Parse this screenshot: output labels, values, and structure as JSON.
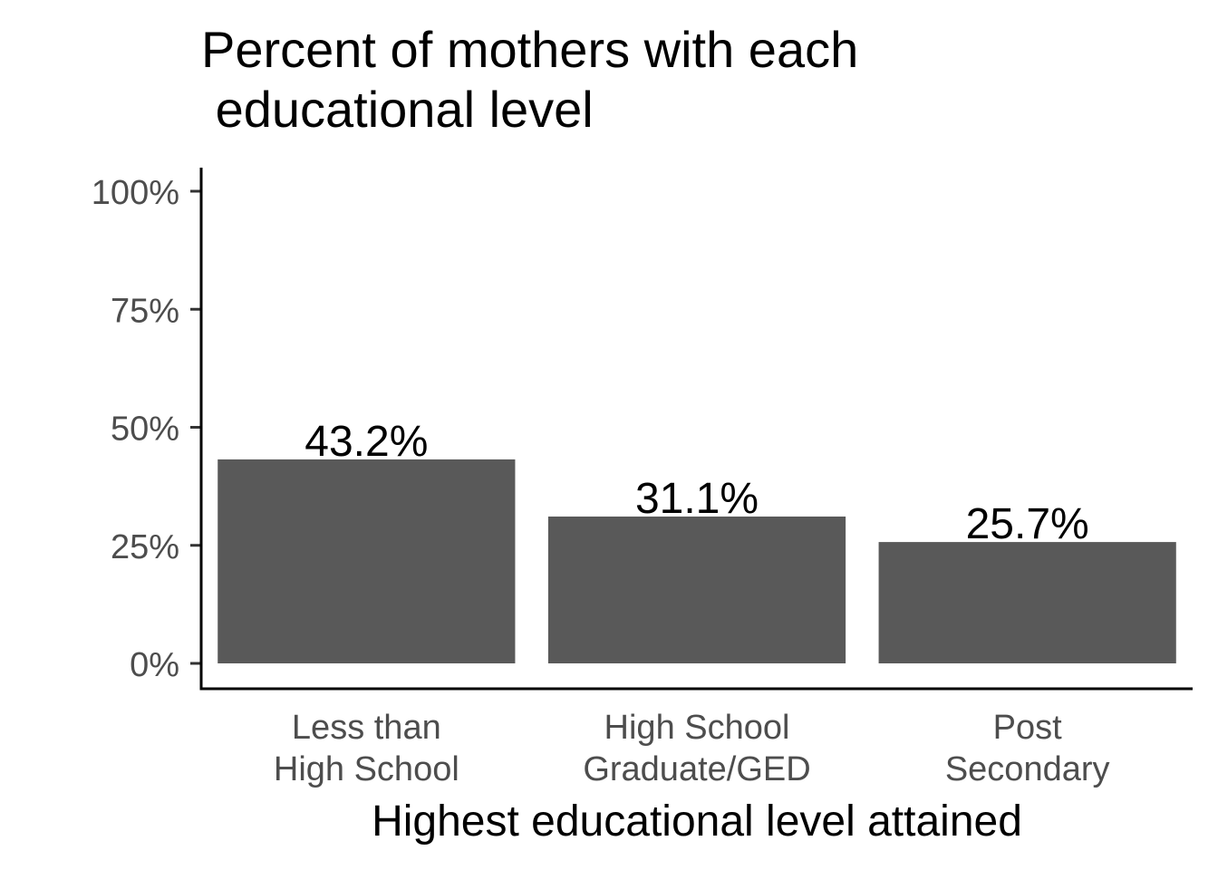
{
  "chart_data": {
    "type": "bar",
    "title": "Percent of mothers with each\n educational level",
    "xlabel": "Highest educational level attained",
    "ylabel": "",
    "categories": [
      [
        "Less than",
        "High School"
      ],
      [
        "High School",
        "Graduate/GED"
      ],
      [
        "Post",
        "Secondary"
      ]
    ],
    "values": [
      43.2,
      31.1,
      25.7
    ],
    "value_labels": [
      "43.2%",
      "31.1%",
      "25.7%"
    ],
    "ylim": [
      0,
      100
    ],
    "yticks": [
      0,
      25,
      50,
      75,
      100
    ],
    "ytick_labels": [
      "0%",
      "25%",
      "50%",
      "75%",
      "100%"
    ],
    "grid": false,
    "legend": "none",
    "bar_color": "#595959"
  }
}
